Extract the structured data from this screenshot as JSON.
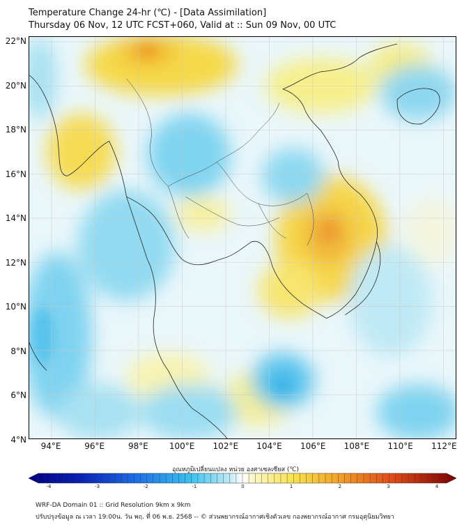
{
  "header": {
    "title_line1": "Temperature Change 24-hr (℃) - [Data Assimilation]",
    "title_line2": "Thursday 06 Nov, 12 UTC FCST+060, Valid at :: Sun 09 Nov, 00 UTC"
  },
  "map": {
    "lat_labels": [
      "22°N",
      "20°N",
      "18°N",
      "16°N",
      "14°N",
      "12°N",
      "10°N",
      "8°N",
      "6°N",
      "4°N"
    ],
    "lon_labels": [
      "94°E",
      "96°E",
      "98°E",
      "100°E",
      "102°E",
      "104°E",
      "106°E",
      "108°E",
      "110°E",
      "112°E"
    ],
    "lat_range": [
      4,
      22
    ],
    "lon_range": [
      93,
      112.5
    ],
    "warm_areas": [
      "northern Myanmar",
      "central Myanmar",
      "eastern Cambodia / southern Laos",
      "northern Vietnam"
    ],
    "cool_areas": [
      "Gulf of Thailand",
      "South China Sea",
      "Andaman Sea"
    ]
  },
  "colorbar": {
    "title": "อุณหภูมิเปลี่ยนแปลง หน่วย องศาเซลเซียส (℃)",
    "ticks": [
      "-4",
      "-3",
      "-2",
      "-1",
      "0",
      "1",
      "2",
      "3",
      "4"
    ],
    "min": -4,
    "max": 4
  },
  "footer": {
    "line1": "WRF-DA Domain 01 :: Grid Resolution 9km x 9km",
    "line2": "ปรับปรุงข้อมูล ณ เวลา 19:00น. วัน พฤ. ที่ 06 พ.ย. 2568 -- © ส่วนพยากรณ์อากาศเชิงตัวเลข กองพยากรณ์อากาศ กรมอุตุนิยมวิทยา"
  }
}
